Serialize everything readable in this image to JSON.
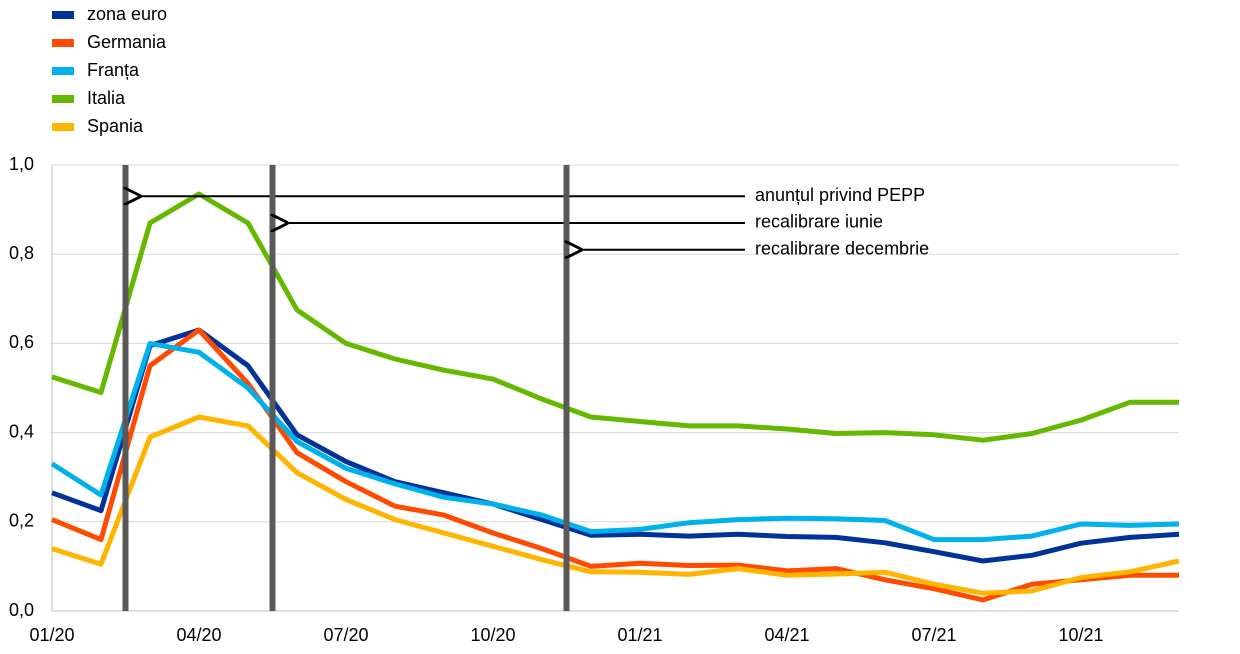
{
  "chart_data": {
    "type": "line",
    "categories": [
      "01/20",
      null,
      null,
      "04/20",
      null,
      null,
      "07/20",
      null,
      null,
      "10/20",
      null,
      null,
      "01/21",
      null,
      null,
      "04/21",
      null,
      null,
      "07/21",
      null,
      null,
      "10/21",
      null,
      null
    ],
    "series": [
      {
        "name": "zona euro",
        "color": "#003299",
        "values": [
          0.265,
          0.225,
          0.595,
          0.63,
          0.55,
          0.395,
          0.335,
          0.29,
          0.265,
          0.24,
          0.205,
          0.17,
          0.172,
          0.168,
          0.172,
          0.167,
          0.165,
          0.153,
          0.133,
          0.112,
          0.125,
          0.152,
          0.165,
          0.172
        ]
      },
      {
        "name": "Germania",
        "color": "#ff4b00",
        "values": [
          0.205,
          0.16,
          0.55,
          0.63,
          0.51,
          0.355,
          0.29,
          0.235,
          0.215,
          0.175,
          0.14,
          0.1,
          0.107,
          0.102,
          0.103,
          0.09,
          0.095,
          0.07,
          0.05,
          0.025,
          0.06,
          0.07,
          0.08,
          0.08
        ]
      },
      {
        "name": "Franța",
        "color": "#00b1ea",
        "values": [
          0.33,
          0.26,
          0.6,
          0.58,
          0.5,
          0.38,
          0.32,
          0.285,
          0.255,
          0.24,
          0.215,
          0.178,
          0.183,
          0.198,
          0.205,
          0.208,
          0.207,
          0.203,
          0.16,
          0.16,
          0.168,
          0.195,
          0.192,
          0.195
        ]
      },
      {
        "name": "Italia",
        "color": "#65b800",
        "values": [
          0.525,
          0.49,
          0.87,
          0.935,
          0.87,
          0.675,
          0.6,
          0.565,
          0.54,
          0.52,
          0.475,
          0.435,
          0.425,
          0.415,
          0.415,
          0.408,
          0.398,
          0.4,
          0.395,
          0.383,
          0.398,
          0.428,
          0.468,
          0.468
        ]
      },
      {
        "name": "Spania",
        "color": "#ffb400",
        "values": [
          0.14,
          0.105,
          0.39,
          0.435,
          0.415,
          0.31,
          0.25,
          0.205,
          0.175,
          0.145,
          0.115,
          0.088,
          0.087,
          0.082,
          0.095,
          0.08,
          0.083,
          0.087,
          0.06,
          0.04,
          0.045,
          0.075,
          0.088,
          0.112
        ]
      }
    ],
    "ylim": [
      0,
      1
    ],
    "yticks": [
      {
        "value": 0,
        "label": "0,0"
      },
      {
        "value": 0.2,
        "label": "0,2"
      },
      {
        "value": 0.4,
        "label": "0,4"
      },
      {
        "value": 0.6,
        "label": "0,6"
      },
      {
        "value": 0.8,
        "label": "0,8"
      },
      {
        "value": 1,
        "label": "1,0"
      }
    ],
    "grid": true,
    "legend": "top-left",
    "annotations": [
      {
        "label": "anunțul privind PEPP",
        "x": 1.5,
        "y": 0.93
      },
      {
        "label": "recalibrare iunie",
        "x": 4.5,
        "y": 0.87
      },
      {
        "label": "recalibrare decembrie",
        "x": 10.5,
        "y": 0.81
      }
    ],
    "annotation_color": "#595959"
  }
}
